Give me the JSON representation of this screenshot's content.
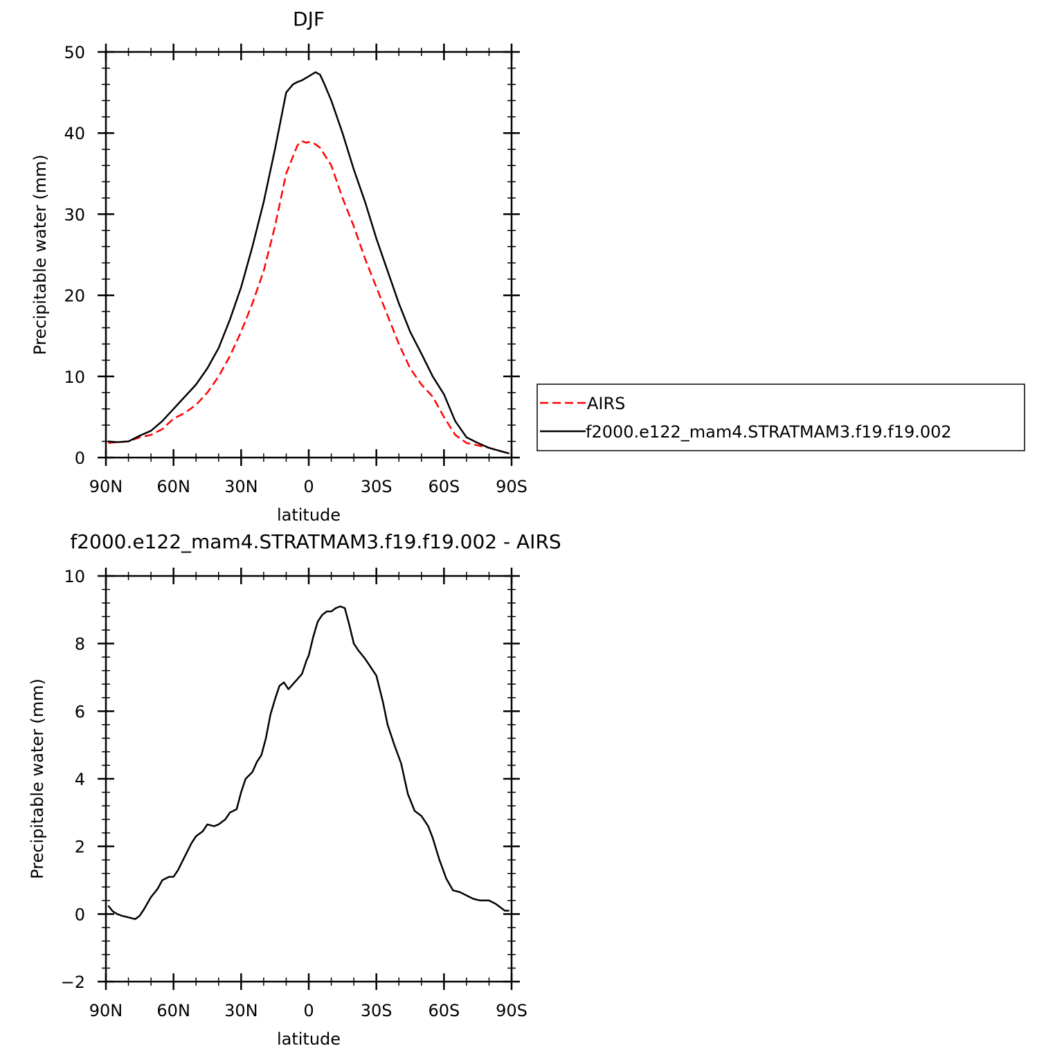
{
  "chart_data": [
    {
      "type": "line",
      "title": "DJF",
      "xlabel": "latitude",
      "ylabel": "Precipitable water (mm)",
      "xlim": [
        -90,
        90
      ],
      "ylim": [
        0,
        50
      ],
      "xticks": [
        -90,
        -60,
        -30,
        0,
        30,
        60,
        90
      ],
      "xtick_labels": [
        "90N",
        "60N",
        "30N",
        "0",
        "30S",
        "60S",
        "90S"
      ],
      "yticks": [
        0,
        10,
        20,
        30,
        40,
        50
      ],
      "ytick_labels": [
        "0",
        "10",
        "20",
        "30",
        "40",
        "50"
      ],
      "legend": "right",
      "series": [
        {
          "name": "AIRS",
          "color": "#ff0000",
          "style": "dashed",
          "x": [
            -89,
            -85,
            -80,
            -75,
            -70,
            -65,
            -60,
            -55,
            -50,
            -45,
            -40,
            -35,
            -30,
            -25,
            -20,
            -15,
            -10,
            -5,
            -3,
            -1,
            0,
            2,
            5,
            10,
            15,
            20,
            25,
            30,
            35,
            40,
            45,
            50,
            55,
            60,
            65,
            70,
            75,
            80,
            85,
            89
          ],
          "y": [
            1.8,
            1.9,
            2.0,
            2.5,
            2.8,
            3.5,
            4.8,
            5.5,
            6.5,
            8.0,
            10.0,
            12.5,
            15.5,
            19.0,
            23.0,
            28.5,
            35.0,
            38.5,
            39.0,
            38.8,
            38.9,
            38.8,
            38.2,
            36.0,
            32.0,
            28.5,
            24.5,
            21.0,
            17.5,
            14.0,
            11.0,
            9.0,
            7.5,
            5.0,
            2.8,
            1.8,
            1.5,
            1.2,
            0.8,
            0.5
          ]
        },
        {
          "name": "f2000.e122_mam4.STRATMAM3.f19.f19.002",
          "color": "#000000",
          "style": "solid",
          "x": [
            -89,
            -85,
            -80,
            -75,
            -70,
            -65,
            -60,
            -55,
            -50,
            -45,
            -40,
            -35,
            -30,
            -25,
            -20,
            -15,
            -10,
            -7,
            -5,
            -3,
            0,
            3,
            5,
            7,
            10,
            15,
            20,
            25,
            30,
            35,
            40,
            45,
            50,
            55,
            60,
            65,
            70,
            75,
            80,
            85,
            89
          ],
          "y": [
            2.0,
            1.9,
            2.0,
            2.7,
            3.3,
            4.5,
            6.0,
            7.5,
            9.0,
            11.0,
            13.5,
            17.0,
            21.0,
            26.0,
            31.5,
            38.0,
            45.0,
            46.0,
            46.3,
            46.5,
            47.0,
            47.5,
            47.2,
            46.0,
            44.0,
            40.0,
            35.5,
            31.5,
            27.0,
            23.0,
            19.0,
            15.5,
            12.8,
            10.0,
            7.8,
            4.5,
            2.5,
            1.8,
            1.2,
            0.8,
            0.5
          ]
        }
      ]
    },
    {
      "type": "line",
      "title": "f2000.e122_mam4.STRATMAM3.f19.f19.002 - AIRS",
      "xlabel": "latitude",
      "ylabel": "Precipitable water (mm)",
      "xlim": [
        -90,
        90
      ],
      "ylim": [
        -2,
        10
      ],
      "xticks": [
        -90,
        -60,
        -30,
        0,
        30,
        60,
        90
      ],
      "xtick_labels": [
        "90N",
        "60N",
        "30N",
        "0",
        "30S",
        "60S",
        "90S"
      ],
      "yticks": [
        -2,
        0,
        2,
        4,
        6,
        8,
        10
      ],
      "ytick_labels": [
        "-2",
        "0",
        "2",
        "4",
        "6",
        "8",
        "10"
      ],
      "series": [
        {
          "color": "#000000",
          "style": "solid",
          "x": [
            -89,
            -87,
            -85,
            -83,
            -80,
            -77,
            -75,
            -73,
            -70,
            -67,
            -65,
            -62,
            -60,
            -58,
            -55,
            -52,
            -50,
            -47,
            -45,
            -42,
            -40,
            -37,
            -35,
            -32,
            -30,
            -28,
            -25,
            -23,
            -21,
            -19,
            -17,
            -15,
            -13,
            -11,
            -9,
            -7,
            -5,
            -3,
            -1,
            0,
            2,
            4,
            6,
            8,
            10,
            12,
            14,
            16,
            18,
            20,
            22,
            25,
            28,
            30,
            33,
            35,
            38,
            41,
            44,
            47,
            50,
            53,
            55,
            58,
            61,
            64,
            67,
            70,
            73,
            76,
            80,
            83,
            85,
            87,
            89
          ],
          "y": [
            0.25,
            0.08,
            0.0,
            -0.05,
            -0.1,
            -0.15,
            -0.05,
            0.15,
            0.5,
            0.75,
            1.0,
            1.1,
            1.1,
            1.3,
            1.7,
            2.1,
            2.3,
            2.45,
            2.65,
            2.6,
            2.65,
            2.8,
            3.0,
            3.1,
            3.6,
            4.0,
            4.2,
            4.5,
            4.7,
            5.2,
            5.9,
            6.35,
            6.75,
            6.85,
            6.65,
            6.8,
            6.95,
            7.1,
            7.5,
            7.65,
            8.2,
            8.65,
            8.85,
            8.95,
            8.95,
            9.05,
            9.1,
            9.05,
            8.55,
            8.0,
            7.8,
            7.55,
            7.25,
            7.05,
            6.25,
            5.6,
            5.0,
            4.45,
            3.55,
            3.05,
            2.9,
            2.6,
            2.25,
            1.6,
            1.05,
            0.7,
            0.65,
            0.55,
            0.45,
            0.4,
            0.4,
            0.3,
            0.2,
            0.1,
            0.1
          ]
        }
      ]
    }
  ]
}
